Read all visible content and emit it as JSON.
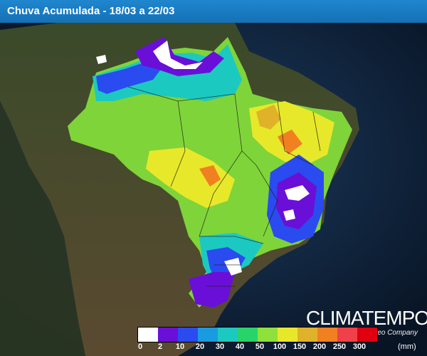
{
  "header": {
    "title": "Chuva Acumulada - 18/03 a 22/03"
  },
  "logo": {
    "name": "CLIMATEMPO",
    "tagline": "A StormGeo Company"
  },
  "legend": {
    "unit": "(mm)",
    "colors": [
      "#ffffff",
      "#6a0fd8",
      "#2a4bf0",
      "#1a9be0",
      "#1cc9c0",
      "#28d46a",
      "#8ee03a",
      "#e8e82a",
      "#e0b22a",
      "#f08020",
      "#f0404a",
      "#e00010"
    ],
    "labels": [
      "0",
      "2",
      "10",
      "20",
      "30",
      "40",
      "50",
      "100",
      "150",
      "200",
      "250",
      "300"
    ]
  },
  "map": {
    "region": "Brasil",
    "rain_scale_colors": {
      "none": "#ffffff",
      "very_low": "#6a0fd8",
      "low": "#2a4bf0",
      "mid": "#1cc9c0",
      "high": "#8ee03a",
      "very_high": "#e8e82a",
      "extreme": "#f08020"
    }
  }
}
